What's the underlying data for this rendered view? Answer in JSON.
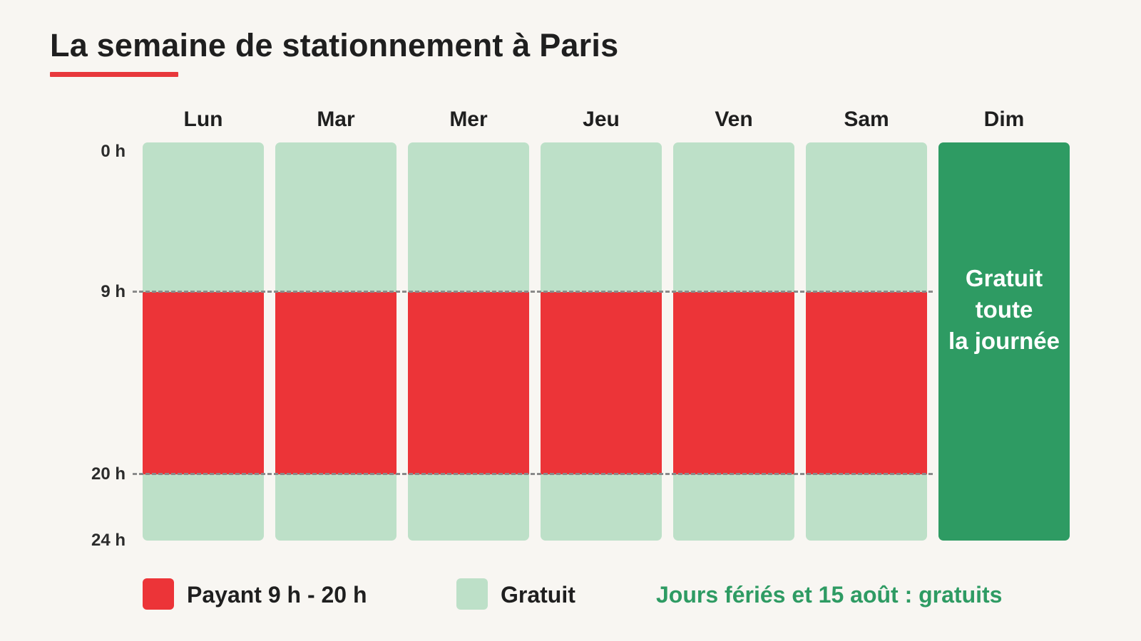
{
  "title": "La semaine de stationnement à Paris",
  "colors": {
    "paid": "#ec3438",
    "free": "#bde0c8",
    "sunday": "#2e9b63",
    "accent": "#e8383c",
    "note": "#2e9b63"
  },
  "hour_labels": [
    "0 h",
    "9 h",
    "20 h",
    "24 h"
  ],
  "days": [
    {
      "label": "Lun",
      "type": "weekday"
    },
    {
      "label": "Mar",
      "type": "weekday"
    },
    {
      "label": "Mer",
      "type": "weekday"
    },
    {
      "label": "Jeu",
      "type": "weekday"
    },
    {
      "label": "Ven",
      "type": "weekday"
    },
    {
      "label": "Sam",
      "type": "weekday"
    },
    {
      "label": "Dim",
      "type": "sunday"
    }
  ],
  "paid_period": {
    "start_hour": 9,
    "end_hour": 20
  },
  "day_hours": 24,
  "sunday_text": [
    "Gratuit",
    "toute",
    "la journée"
  ],
  "legend": {
    "paid_label": "Payant 9 h - 20 h",
    "free_label": "Gratuit",
    "note": "Jours fériés et 15 août : gratuits"
  }
}
